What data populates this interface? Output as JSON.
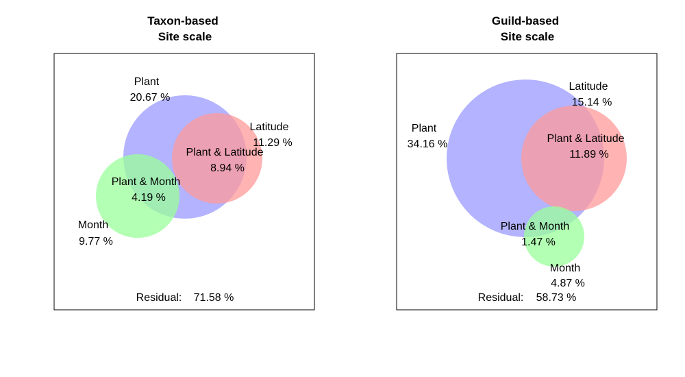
{
  "chart_data": [
    {
      "type": "venn",
      "title": [
        "Taxon-based",
        "Site scale"
      ],
      "colors": {
        "Plant": "#9999ff",
        "Latitude": "#ff9999",
        "Month": "#99ff99"
      },
      "sets": {
        "Plant": {
          "label": "Plant",
          "value": "20.67 %"
        },
        "Latitude": {
          "label": "Latitude",
          "value": "11.29 %"
        },
        "Month": {
          "label": "Month",
          "value": "9.77 %"
        }
      },
      "intersections": {
        "Plant & Latitude": {
          "label": "Plant & Latitude",
          "value": "8.94 %"
        },
        "Plant & Month": {
          "label": "Plant & Month",
          "value": "4.19 %"
        }
      },
      "residual": {
        "label": "Residual:",
        "value": "71.58 %"
      }
    },
    {
      "type": "venn",
      "title": [
        "Guild-based",
        "Site scale"
      ],
      "colors": {
        "Plant": "#9999ff",
        "Latitude": "#ff9999",
        "Month": "#99ff99"
      },
      "sets": {
        "Plant": {
          "label": "Plant",
          "value": "34.16 %"
        },
        "Latitude": {
          "label": "Latitude",
          "value": "15.14 %"
        },
        "Month": {
          "label": "Month",
          "value": "4.87 %"
        }
      },
      "intersections": {
        "Plant & Latitude": {
          "label": "Plant & Latitude",
          "value": "11.89 %"
        },
        "Plant & Month": {
          "label": "Plant & Month",
          "value": "1.47 %"
        }
      },
      "residual": {
        "label": "Residual:",
        "value": "58.73 %"
      }
    }
  ]
}
